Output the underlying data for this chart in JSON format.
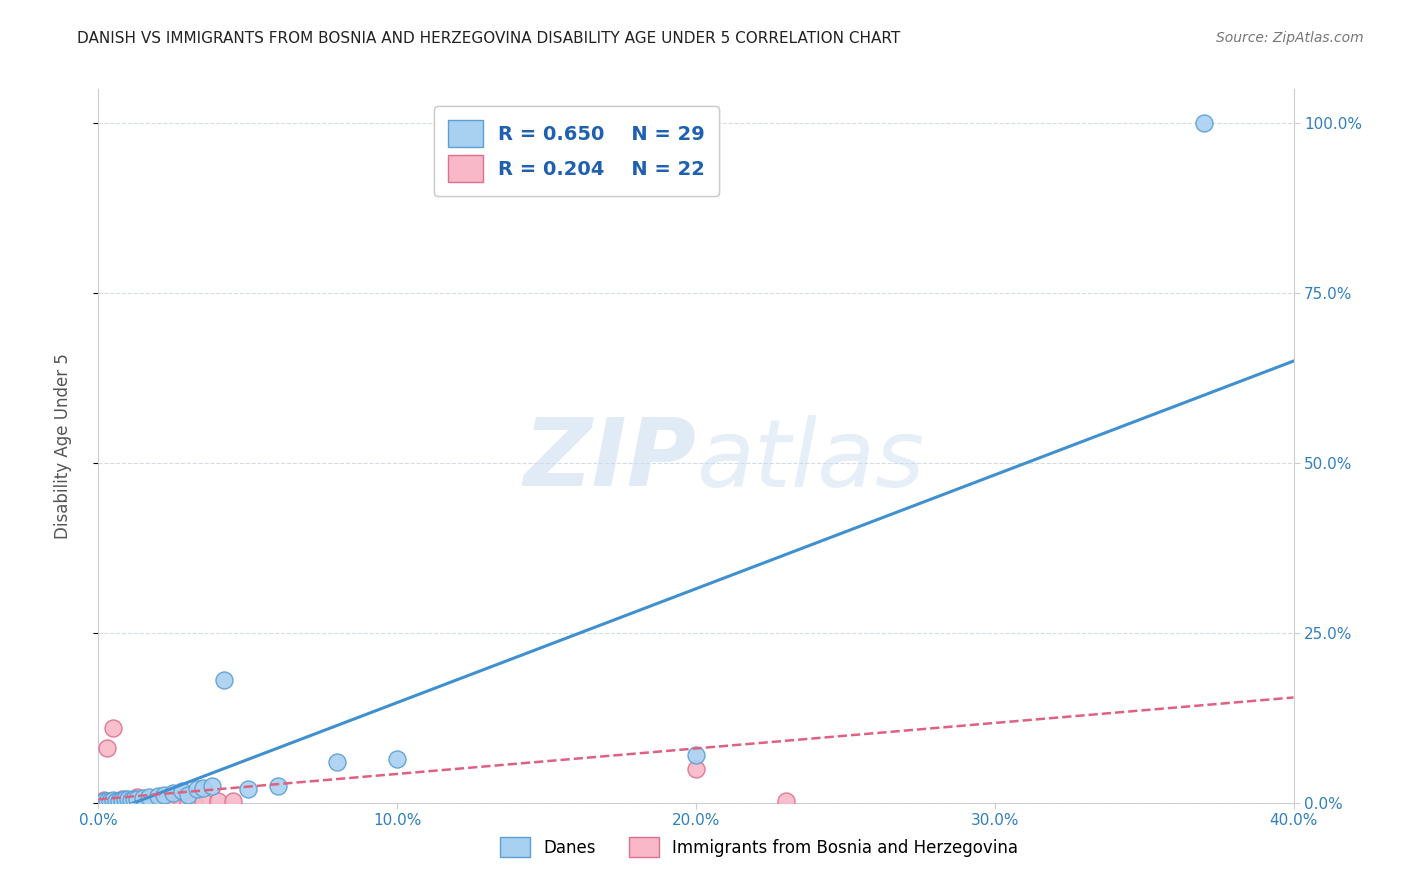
{
  "title": "DANISH VS IMMIGRANTS FROM BOSNIA AND HERZEGOVINA DISABILITY AGE UNDER 5 CORRELATION CHART",
  "source": "Source: ZipAtlas.com",
  "ylabel": "Disability Age Under 5",
  "xlim": [
    0.0,
    0.4
  ],
  "ylim": [
    0.0,
    1.05
  ],
  "xticks": [
    0.0,
    0.1,
    0.2,
    0.3,
    0.4
  ],
  "xtick_labels": [
    "0.0%",
    "10.0%",
    "20.0%",
    "30.0%",
    "40.0%"
  ],
  "yticks": [
    0.0,
    0.25,
    0.5,
    0.75,
    1.0
  ],
  "ytick_labels": [
    "0.0%",
    "25.0%",
    "50.0%",
    "75.0%",
    "100.0%"
  ],
  "danes_color": "#a8d0f0",
  "danes_edge_color": "#5b9fd4",
  "immig_color": "#f8b8c8",
  "immig_edge_color": "#e07090",
  "trendline_blue_color": "#4090d0",
  "trendline_pink_color": "#e06080",
  "R_danes": 0.65,
  "N_danes": 29,
  "R_immig": 0.204,
  "N_immig": 22,
  "danes_x": [
    0.002,
    0.003,
    0.004,
    0.005,
    0.006,
    0.007,
    0.008,
    0.009,
    0.01,
    0.011,
    0.012,
    0.013,
    0.015,
    0.017,
    0.02,
    0.022,
    0.025,
    0.028,
    0.03,
    0.033,
    0.035,
    0.038,
    0.042,
    0.05,
    0.06,
    0.08,
    0.1,
    0.2,
    0.37
  ],
  "danes_y": [
    0.002,
    0.003,
    0.002,
    0.004,
    0.003,
    0.003,
    0.004,
    0.005,
    0.005,
    0.004,
    0.005,
    0.006,
    0.007,
    0.008,
    0.01,
    0.012,
    0.015,
    0.018,
    0.012,
    0.02,
    0.022,
    0.025,
    0.18,
    0.02,
    0.025,
    0.06,
    0.065,
    0.07,
    1.0
  ],
  "immig_x": [
    0.002,
    0.003,
    0.005,
    0.006,
    0.008,
    0.01,
    0.012,
    0.013,
    0.015,
    0.017,
    0.018,
    0.02,
    0.022,
    0.025,
    0.028,
    0.03,
    0.032,
    0.035,
    0.04,
    0.045,
    0.2,
    0.23
  ],
  "immig_y": [
    0.004,
    0.08,
    0.11,
    0.003,
    0.005,
    0.003,
    0.003,
    0.008,
    0.004,
    0.003,
    0.003,
    0.005,
    0.004,
    0.003,
    0.003,
    0.003,
    0.003,
    0.003,
    0.003,
    0.003,
    0.05,
    0.003
  ],
  "trend_blue_x0": 0.0,
  "trend_blue_y0": -0.02,
  "trend_blue_x1": 0.4,
  "trend_blue_y1": 0.65,
  "trend_pink_x0": 0.0,
  "trend_pink_y0": 0.005,
  "trend_pink_x1": 0.4,
  "trend_pink_y1": 0.155,
  "watermark_color": "#ddeeff",
  "background_color": "#ffffff",
  "grid_color": "#d0d8e0"
}
